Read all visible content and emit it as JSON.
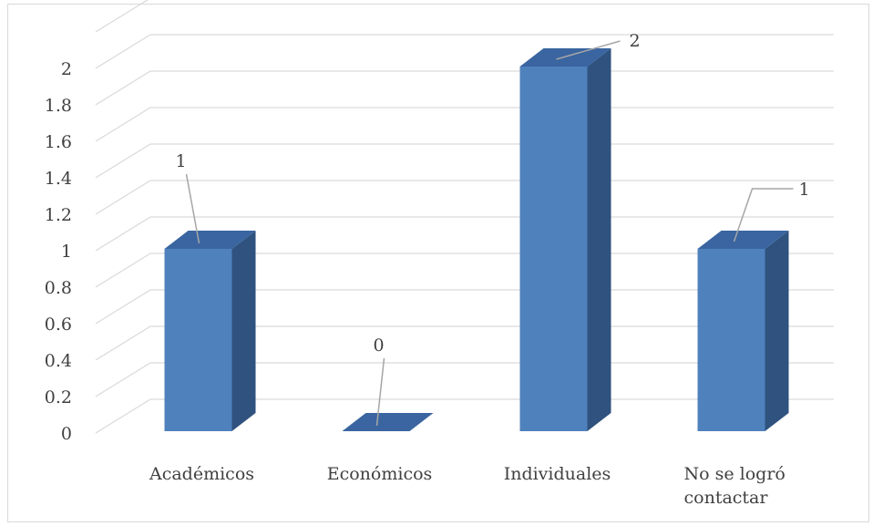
{
  "chart_data": {
    "type": "bar",
    "categories": [
      "Académicos",
      "Económicos",
      "Individuales",
      "No se logró contactar"
    ],
    "category_lines": [
      [
        "Académicos"
      ],
      [
        "Económicos"
      ],
      [
        "Individuales"
      ],
      [
        "No se logró",
        "contactar"
      ]
    ],
    "values": [
      1,
      0,
      2,
      1
    ],
    "data_labels": [
      "1",
      "0",
      "2",
      "1"
    ],
    "yticks": [
      "0",
      "0.2",
      "0.4",
      "0.6",
      "0.8",
      "1",
      "1.2",
      "1.4",
      "1.6",
      "1.8",
      "2"
    ],
    "ylim": [
      0,
      2.2
    ],
    "grid": true,
    "three_d": true,
    "bar_color": "#4f81bd",
    "bar_side_color": "#2f527f",
    "bar_top_color": "#3a65a0",
    "grid_color": "#d9d9d9",
    "title": "",
    "xlabel": "",
    "ylabel": ""
  }
}
